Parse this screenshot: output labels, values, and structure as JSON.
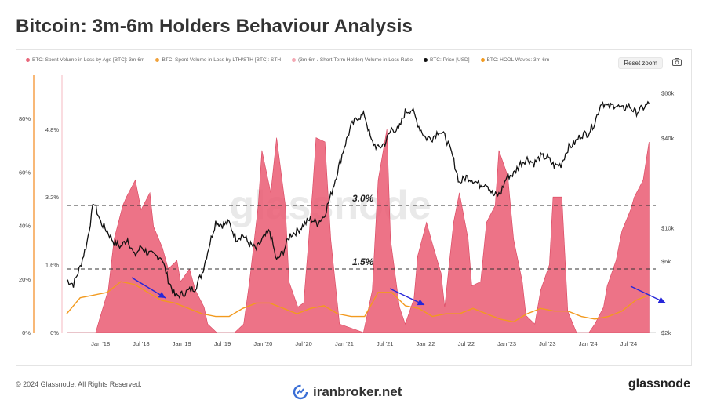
{
  "title": "Bitcoin: 3m-6m Holders Behaviour Analysis",
  "legend": [
    {
      "label": "BTC: Spent Volume in Loss by Age [BTC]: 3m-6m",
      "color": "#e8677b"
    },
    {
      "label": "BTC: Spent Volume in Loss by LTH/STH [BTC]: STH",
      "color": "#f0a23c"
    },
    {
      "label": "(3m-6m / Short-Term Holder) Volume in Loss Ratio",
      "color": "#f3a9b4"
    },
    {
      "label": "BTC: Price [USD]",
      "color": "#111111"
    },
    {
      "label": "BTC: HODL Waves: 3m-6m",
      "color": "#f29a1f"
    }
  ],
  "reset_zoom_label": "Reset zoom",
  "watermark": "glassnode",
  "copyright": "© 2024 Glassnode. All Rights Reserved.",
  "brand": "glassnode",
  "iranbroker": "iranbroker.net",
  "colors": {
    "ratio_fill": "#ea5a72",
    "hodl": "#f29a1f",
    "price": "#111111",
    "arrow": "#2626d9",
    "axis_line": "#f5a04a"
  },
  "chart_data": {
    "type": "area",
    "x_axis": {
      "ticks": [
        "Jan '18",
        "Jul '18",
        "Jan '19",
        "Jul '19",
        "Jan '20",
        "Jul '20",
        "Jan '21",
        "Jul '21",
        "Jan '22",
        "Jul '22",
        "Jan '23",
        "Jul '23",
        "Jan '24",
        "Jul '24"
      ],
      "range": [
        "2017-08",
        "2024-11"
      ]
    },
    "y_left_outer": {
      "ticks": [
        "0%",
        "20%",
        "40%",
        "60%",
        "80%"
      ],
      "range": [
        0,
        0.95
      ]
    },
    "y_left_inner": {
      "ticks": [
        "0%",
        "1.6%",
        "3.2%",
        "4.8%"
      ],
      "range": [
        0,
        0.06
      ]
    },
    "y_right": {
      "ticks": [
        "$2k",
        "$6k",
        "$10k",
        "$40k",
        "$80k"
      ],
      "scale": "log",
      "range": [
        2000,
        100000
      ]
    },
    "annotations": [
      {
        "label": "3.0%",
        "value": 0.03,
        "style": "dashed"
      },
      {
        "label": "1.5%",
        "value": 0.015,
        "style": "dashed"
      }
    ],
    "series": [
      {
        "name": "BTC: Price [USD]",
        "axis": "y_right",
        "x": [
          "2017-08",
          "2017-09",
          "2017-10",
          "2017-11",
          "2017-12",
          "2018-01",
          "2018-02",
          "2018-03",
          "2018-04",
          "2018-05",
          "2018-06",
          "2018-07",
          "2018-08",
          "2018-09",
          "2018-10",
          "2018-11",
          "2018-12",
          "2019-01",
          "2019-02",
          "2019-03",
          "2019-04",
          "2019-05",
          "2019-06",
          "2019-07",
          "2019-08",
          "2019-09",
          "2019-10",
          "2019-11",
          "2019-12",
          "2020-01",
          "2020-02",
          "2020-03",
          "2020-04",
          "2020-05",
          "2020-06",
          "2020-07",
          "2020-08",
          "2020-09",
          "2020-10",
          "2020-11",
          "2020-12",
          "2021-01",
          "2021-02",
          "2021-03",
          "2021-04",
          "2021-05",
          "2021-06",
          "2021-07",
          "2021-08",
          "2021-09",
          "2021-10",
          "2021-11",
          "2021-12",
          "2022-01",
          "2022-02",
          "2022-03",
          "2022-04",
          "2022-05",
          "2022-06",
          "2022-07",
          "2022-08",
          "2022-09",
          "2022-10",
          "2022-11",
          "2022-12",
          "2023-01",
          "2023-02",
          "2023-03",
          "2023-04",
          "2023-05",
          "2023-06",
          "2023-07",
          "2023-08",
          "2023-09",
          "2023-10",
          "2023-11",
          "2023-12",
          "2024-01",
          "2024-02",
          "2024-03",
          "2024-04",
          "2024-05",
          "2024-06",
          "2024-07",
          "2024-08",
          "2024-09",
          "2024-10"
        ],
        "values": [
          4500,
          4200,
          5500,
          8000,
          15000,
          11000,
          9500,
          8000,
          7500,
          8500,
          6500,
          7500,
          6800,
          6500,
          6400,
          4500,
          3500,
          3600,
          3800,
          4000,
          5000,
          7500,
          11000,
          10500,
          10800,
          8500,
          9000,
          7800,
          7200,
          8500,
          9500,
          6000,
          7000,
          9000,
          9500,
          10500,
          11500,
          10800,
          12000,
          16500,
          24000,
          35000,
          48000,
          55000,
          57000,
          38000,
          34000,
          37000,
          46000,
          45000,
          60000,
          62000,
          48000,
          40000,
          40000,
          45000,
          40000,
          30000,
          20000,
          22000,
          21000,
          19500,
          20000,
          16500,
          16800,
          22000,
          23000,
          27000,
          29000,
          27000,
          30000,
          29500,
          26000,
          26500,
          34000,
          37000,
          42000,
          43000,
          51000,
          70000,
          64000,
          67000,
          62000,
          66000,
          59000,
          63000,
          68000
        ]
      },
      {
        "name": "(3m-6m / Short-Term Holder) Volume in Loss Ratio",
        "axis": "y_left_inner",
        "x": [
          "2017-08",
          "2017-12",
          "2018-01",
          "2018-02",
          "2018-03",
          "2018-04",
          "2018-05",
          "2018-06",
          "2018-07",
          "2018-08",
          "2018-09",
          "2018-10",
          "2018-11",
          "2018-12",
          "2019-01",
          "2019-02",
          "2019-03",
          "2019-04",
          "2019-05",
          "2019-06",
          "2019-07",
          "2019-08",
          "2019-09",
          "2019-10",
          "2019-11",
          "2019-12",
          "2020-01",
          "2020-02",
          "2020-03",
          "2020-04",
          "2020-05",
          "2020-06",
          "2020-07",
          "2020-08",
          "2020-09",
          "2020-10",
          "2020-11",
          "2020-12",
          "2021-04",
          "2021-05",
          "2021-06",
          "2021-07",
          "2021-08",
          "2021-09",
          "2021-10",
          "2021-11",
          "2021-12",
          "2022-01",
          "2022-02",
          "2022-03",
          "2022-04",
          "2022-05",
          "2022-06",
          "2022-07",
          "2022-08",
          "2022-09",
          "2022-10",
          "2022-11",
          "2022-12",
          "2023-01",
          "2023-02",
          "2023-03",
          "2023-04",
          "2023-05",
          "2023-06",
          "2023-07",
          "2023-08",
          "2023-09",
          "2023-10",
          "2023-11",
          "2023-12",
          "2024-01",
          "2024-02",
          "2024-03",
          "2024-04",
          "2024-05",
          "2024-06",
          "2024-07",
          "2024-08",
          "2024-09",
          "2024-10"
        ],
        "values": [
          0,
          0,
          0.003,
          0.01,
          0.022,
          0.03,
          0.032,
          0.036,
          0.029,
          0.033,
          0.025,
          0.02,
          0.015,
          0.017,
          0.012,
          0.015,
          0.01,
          0.006,
          0.002,
          0,
          0,
          0,
          0,
          0.002,
          0.012,
          0.03,
          0.043,
          0.033,
          0.046,
          0.03,
          0.012,
          0.006,
          0.007,
          0.033,
          0.046,
          0.045,
          0.022,
          0.002,
          0,
          0.01,
          0.036,
          0.048,
          0.022,
          0.006,
          0.002,
          0.008,
          0.018,
          0.026,
          0.021,
          0.014,
          0.006,
          0.026,
          0.033,
          0.022,
          0.011,
          0.012,
          0.026,
          0.03,
          0.043,
          0.037,
          0.022,
          0.012,
          0.004,
          0.002,
          0.01,
          0.016,
          0.032,
          0.032,
          0.005,
          0,
          0,
          0,
          0.002,
          0.006,
          0.011,
          0.017,
          0.024,
          0.029,
          0.032,
          0.036,
          0.045
        ]
      },
      {
        "name": "BTC: HODL Waves: 3m-6m",
        "axis": "y_left_outer",
        "x": [
          "2017-08",
          "2017-10",
          "2017-12",
          "2018-02",
          "2018-04",
          "2018-06",
          "2018-08",
          "2018-10",
          "2018-12",
          "2019-02",
          "2019-04",
          "2019-06",
          "2019-08",
          "2019-10",
          "2019-12",
          "2020-02",
          "2020-04",
          "2020-06",
          "2020-08",
          "2020-10",
          "2020-12",
          "2021-02",
          "2021-04",
          "2021-06",
          "2021-08",
          "2021-10",
          "2021-12",
          "2022-02",
          "2022-04",
          "2022-06",
          "2022-08",
          "2022-10",
          "2022-12",
          "2023-02",
          "2023-04",
          "2023-06",
          "2023-08",
          "2023-10",
          "2023-12",
          "2024-02",
          "2024-04",
          "2024-06",
          "2024-08",
          "2024-10"
        ],
        "values": [
          0.07,
          0.13,
          0.14,
          0.15,
          0.19,
          0.18,
          0.15,
          0.12,
          0.11,
          0.09,
          0.07,
          0.06,
          0.06,
          0.09,
          0.11,
          0.11,
          0.09,
          0.07,
          0.09,
          0.1,
          0.07,
          0.06,
          0.06,
          0.15,
          0.15,
          0.1,
          0.09,
          0.06,
          0.07,
          0.07,
          0.09,
          0.07,
          0.05,
          0.04,
          0.07,
          0.09,
          0.08,
          0.08,
          0.06,
          0.05,
          0.06,
          0.08,
          0.12,
          0.14
        ]
      }
    ],
    "arrows": 4
  }
}
